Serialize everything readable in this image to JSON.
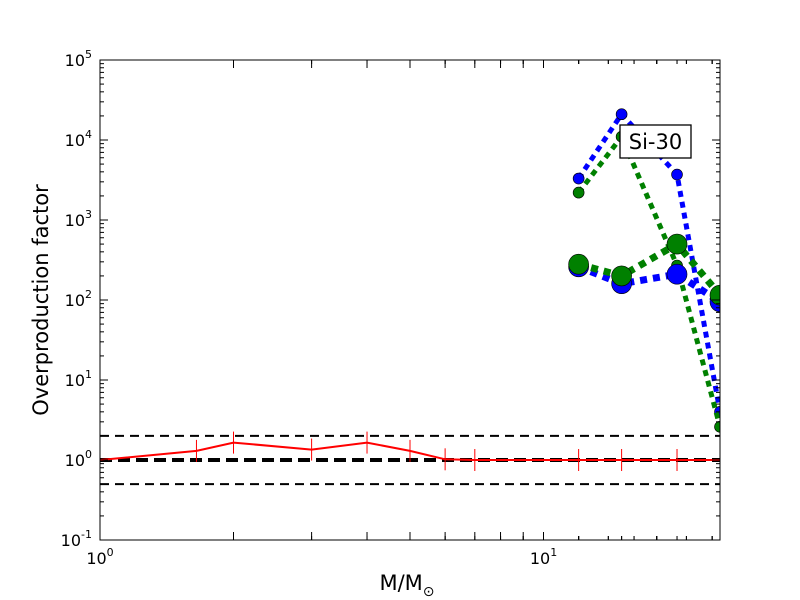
{
  "chart_data": {
    "type": "line",
    "title": "",
    "xlabel": "M/M",
    "xlabel_subscript": "⊙",
    "ylabel": "Overproduction factor",
    "xscale": "log",
    "yscale": "log",
    "xlim": [
      1,
      25
    ],
    "ylim": [
      0.1,
      100000
    ],
    "x_ticks": [
      {
        "value": 1,
        "base": "10",
        "exp": "0"
      },
      {
        "value": 10,
        "base": "10",
        "exp": "1"
      }
    ],
    "y_ticks": [
      {
        "value": 0.1,
        "base": "10",
        "exp": "-1"
      },
      {
        "value": 1,
        "base": "10",
        "exp": "0"
      },
      {
        "value": 10,
        "base": "10",
        "exp": "1"
      },
      {
        "value": 100,
        "base": "10",
        "exp": "2"
      },
      {
        "value": 1000,
        "base": "10",
        "exp": "3"
      },
      {
        "value": 10000,
        "base": "10",
        "exp": "4"
      },
      {
        "value": 100000,
        "base": "10",
        "exp": "5"
      }
    ],
    "annotation": "Si-30",
    "grid": false,
    "reference_lines": [
      {
        "y": 2,
        "style": "dashed",
        "color": "#000000"
      },
      {
        "y": 1,
        "style": "dashed-thick",
        "color": "#000000"
      },
      {
        "y": 0.5,
        "style": "dashed",
        "color": "#000000"
      }
    ],
    "series": [
      {
        "color": "#ff0000",
        "style": "solid",
        "x": [
          1,
          1.65,
          2,
          3,
          4,
          5,
          6,
          7,
          12,
          15,
          20,
          25
        ],
        "y": [
          1.0,
          1.3,
          1.65,
          1.35,
          1.65,
          1.3,
          1.02,
          1.0,
          1.0,
          1.0,
          1.0,
          1.0
        ],
        "markers": [
          1.65,
          2,
          3,
          4,
          5,
          6,
          7,
          12,
          15,
          20
        ]
      },
      {
        "color": "#0000ff",
        "style": "dotted",
        "marker_size": "small",
        "x": [
          12,
          15,
          20,
          25
        ],
        "y": [
          3300,
          21000,
          3700,
          4.0
        ]
      },
      {
        "color": "#008000",
        "style": "dotted",
        "marker_size": "small",
        "x": [
          12,
          15,
          20,
          25
        ],
        "y": [
          2200,
          11000,
          270,
          2.6
        ]
      },
      {
        "color": "#0000ff",
        "style": "dotted",
        "marker_size": "large",
        "x": [
          12,
          15,
          20,
          25
        ],
        "y": [
          260,
          160,
          210,
          95
        ]
      },
      {
        "color": "#008000",
        "style": "dotted",
        "marker_size": "large",
        "x": [
          12,
          15,
          20,
          25
        ],
        "y": [
          280,
          200,
          500,
          115
        ]
      }
    ]
  }
}
